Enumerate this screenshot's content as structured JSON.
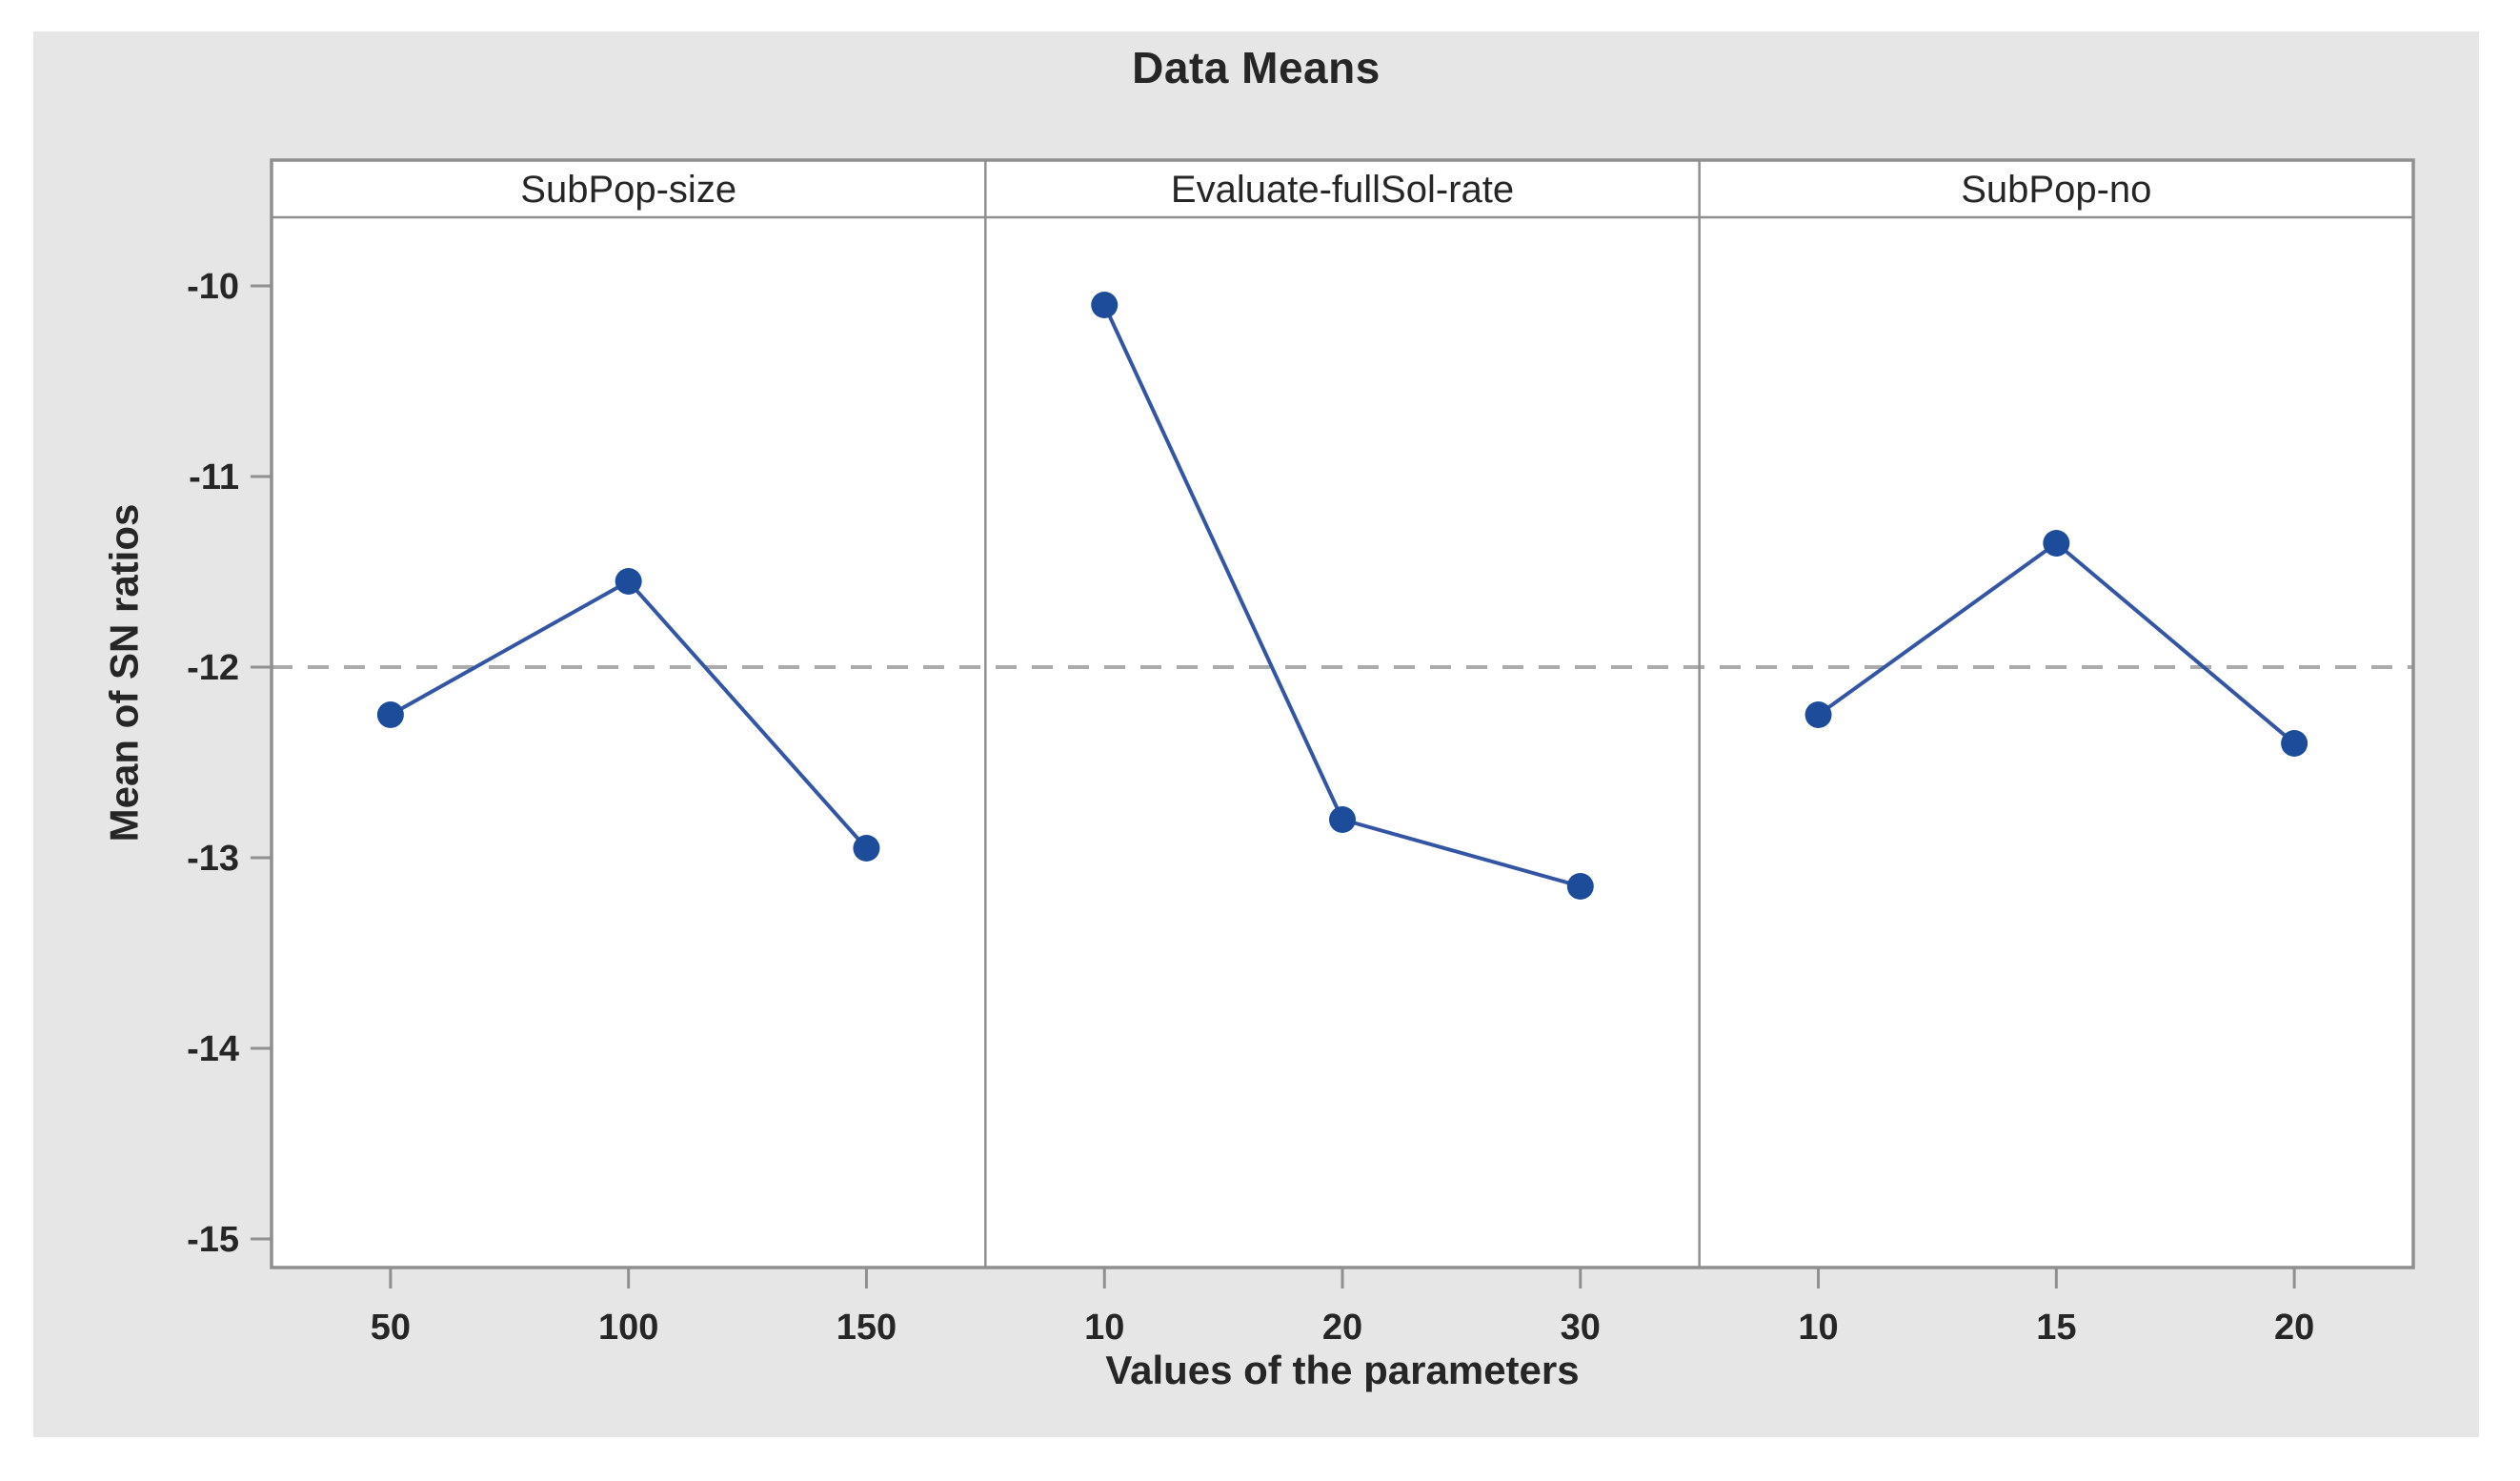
{
  "chart_data": {
    "type": "line",
    "title": "Data Means",
    "ylabel": "Mean of SN ratios",
    "xlabel": "Values of the parameters",
    "ylim": [
      -15,
      -10
    ],
    "yticks": [
      -10,
      -11,
      -12,
      -13,
      -14,
      -15
    ],
    "reference_line": -12,
    "grid": "off",
    "legend": "none",
    "panels": [
      {
        "label": "SubPop-size",
        "categories": [
          "50",
          "100",
          "150"
        ],
        "values": [
          -12.25,
          -11.55,
          -12.95
        ]
      },
      {
        "label": "Evaluate-fullSol-rate",
        "categories": [
          "10",
          "20",
          "30"
        ],
        "values": [
          -10.1,
          -12.8,
          -13.15
        ]
      },
      {
        "label": "SubPop-no",
        "categories": [
          "10",
          "15",
          "20"
        ],
        "values": [
          -12.25,
          -11.35,
          -12.4
        ]
      }
    ],
    "colors": {
      "figure_background": "#e6e6e6",
      "plot_background": "#ffffff",
      "panel_border": "#8f8f8f",
      "reference_line": "#ababab",
      "series_line": "#3455a4",
      "marker": "#1d4d9a",
      "text": "#262626"
    }
  }
}
